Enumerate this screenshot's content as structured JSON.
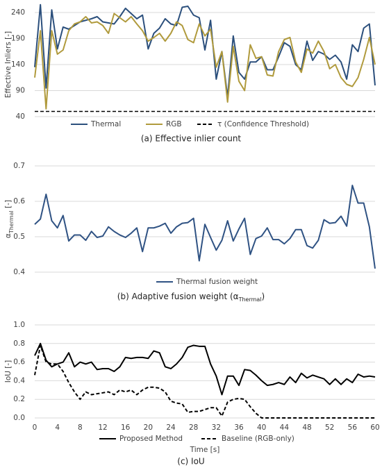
{
  "chart_data": [
    {
      "type": "line",
      "ylabel": "Effective Inliers [-]",
      "caption": "(a) Effective inlier count",
      "x": [
        0,
        1,
        2,
        3,
        4,
        5,
        6,
        7,
        8,
        9,
        10,
        11,
        12,
        13,
        14,
        15,
        16,
        17,
        18,
        19,
        20,
        21,
        22,
        23,
        24,
        25,
        26,
        27,
        28,
        29,
        30,
        31,
        32,
        33,
        34,
        35,
        36,
        37,
        38,
        39,
        40,
        41,
        42,
        43,
        44,
        45,
        46,
        47,
        48,
        49,
        50,
        51,
        52,
        53,
        54,
        55,
        56,
        57,
        58,
        59,
        60
      ],
      "xlim": [
        0,
        60
      ],
      "ylim": [
        40,
        240
      ],
      "yticks": [
        40,
        90,
        140,
        190,
        240
      ],
      "grid": true,
      "series": [
        {
          "name": "Thermal",
          "color": "#2b4f7c",
          "style": "solid",
          "values": [
            135,
            255,
            95,
            245,
            170,
            212,
            208,
            215,
            222,
            225,
            228,
            232,
            222,
            220,
            218,
            232,
            248,
            238,
            228,
            235,
            170,
            200,
            210,
            228,
            218,
            215,
            250,
            252,
            235,
            230,
            168,
            225,
            112,
            165,
            78,
            195,
            125,
            112,
            145,
            145,
            155,
            130,
            130,
            155,
            182,
            175,
            140,
            130,
            185,
            148,
            165,
            160,
            150,
            158,
            145,
            112,
            178,
            165,
            210,
            218,
            100
          ]
        },
        {
          "name": "RGB",
          "color": "#b09a3c",
          "style": "solid",
          "values": [
            115,
            205,
            55,
            205,
            160,
            168,
            205,
            218,
            222,
            232,
            220,
            222,
            215,
            200,
            238,
            230,
            222,
            232,
            218,
            205,
            185,
            192,
            200,
            185,
            200,
            222,
            215,
            188,
            182,
            218,
            195,
            208,
            135,
            165,
            68,
            175,
            108,
            90,
            178,
            152,
            155,
            120,
            118,
            165,
            188,
            192,
            145,
            125,
            170,
            162,
            185,
            165,
            132,
            140,
            115,
            102,
            98,
            115,
            150,
            192,
            140
          ]
        }
      ],
      "threshold": {
        "name": "τ (Confidence Threshold)",
        "value": 50,
        "color": "#000000",
        "style": "dashed"
      }
    },
    {
      "type": "line",
      "ylabel": [
        "α",
        "Thermal",
        " [-]"
      ],
      "caption": [
        "(b) Adaptive fusion weight (α",
        "Thermal",
        ")"
      ],
      "x": [
        0,
        1,
        2,
        3,
        4,
        5,
        6,
        7,
        8,
        9,
        10,
        11,
        12,
        13,
        14,
        15,
        16,
        17,
        18,
        19,
        20,
        21,
        22,
        23,
        24,
        25,
        26,
        27,
        28,
        29,
        30,
        31,
        32,
        33,
        34,
        35,
        36,
        37,
        38,
        39,
        40,
        41,
        42,
        43,
        44,
        45,
        46,
        47,
        48,
        49,
        50,
        51,
        52,
        53,
        54,
        55,
        56,
        57,
        58,
        59,
        60
      ],
      "xlim": [
        0,
        60
      ],
      "ylim": [
        0.4,
        0.7
      ],
      "yticks": [
        0.4,
        0.5,
        0.6,
        0.7
      ],
      "grid": true,
      "series": [
        {
          "name": "Thermal fusion weight",
          "color": "#2f5283",
          "style": "solid",
          "values": [
            0.535,
            0.55,
            0.62,
            0.545,
            0.525,
            0.56,
            0.488,
            0.505,
            0.505,
            0.49,
            0.515,
            0.498,
            0.502,
            0.528,
            0.515,
            0.505,
            0.498,
            0.51,
            0.525,
            0.458,
            0.525,
            0.525,
            0.53,
            0.538,
            0.51,
            0.528,
            0.538,
            0.54,
            0.552,
            0.432,
            0.535,
            0.498,
            0.462,
            0.49,
            0.545,
            0.488,
            0.522,
            0.552,
            0.45,
            0.495,
            0.502,
            0.525,
            0.492,
            0.492,
            0.48,
            0.495,
            0.52,
            0.52,
            0.475,
            0.468,
            0.49,
            0.548,
            0.538,
            0.54,
            0.558,
            0.53,
            0.645,
            0.595,
            0.595,
            0.528,
            0.41
          ]
        }
      ]
    },
    {
      "type": "line",
      "ylabel": "IoU [-]",
      "xlabel": "Time [s]",
      "caption": "(c) IoU",
      "x": [
        0,
        1,
        2,
        3,
        4,
        5,
        6,
        7,
        8,
        9,
        10,
        11,
        12,
        13,
        14,
        15,
        16,
        17,
        18,
        19,
        20,
        21,
        22,
        23,
        24,
        25,
        26,
        27,
        28,
        29,
        30,
        31,
        32,
        33,
        34,
        35,
        36,
        37,
        38,
        39,
        40,
        41,
        42,
        43,
        44,
        45,
        46,
        47,
        48,
        49,
        50,
        51,
        52,
        53,
        54,
        55,
        56,
        57,
        58,
        59,
        60
      ],
      "xlim": [
        0,
        60
      ],
      "xticks": [
        0,
        4,
        8,
        12,
        16,
        20,
        24,
        28,
        32,
        36,
        40,
        44,
        48,
        52,
        56,
        60
      ],
      "ylim": [
        0,
        1
      ],
      "yticks": [
        {
          "value": 0,
          "label": "0.0"
        },
        0.2,
        0.4,
        0.6,
        0.8,
        {
          "value": 1,
          "label": "1.0"
        }
      ],
      "grid": true,
      "series": [
        {
          "name": "Proposed Method",
          "color": "#000000",
          "style": "solid",
          "values": [
            0.67,
            0.8,
            0.62,
            0.55,
            0.58,
            0.6,
            0.7,
            0.55,
            0.6,
            0.58,
            0.6,
            0.52,
            0.53,
            0.53,
            0.5,
            0.55,
            0.65,
            0.64,
            0.65,
            0.65,
            0.64,
            0.72,
            0.7,
            0.55,
            0.53,
            0.58,
            0.65,
            0.76,
            0.78,
            0.77,
            0.77,
            0.58,
            0.45,
            0.25,
            0.45,
            0.45,
            0.35,
            0.52,
            0.51,
            0.46,
            0.4,
            0.35,
            0.36,
            0.38,
            0.36,
            0.44,
            0.38,
            0.48,
            0.43,
            0.46,
            0.44,
            0.42,
            0.36,
            0.42,
            0.36,
            0.42,
            0.38,
            0.47,
            0.44,
            0.45,
            0.44
          ]
        },
        {
          "name": "Baseline (RGB-only)",
          "color": "#000000",
          "style": "dashed",
          "values": [
            0.46,
            0.78,
            0.6,
            0.58,
            0.58,
            0.5,
            0.38,
            0.28,
            0.2,
            0.28,
            0.25,
            0.26,
            0.27,
            0.28,
            0.25,
            0.3,
            0.28,
            0.3,
            0.25,
            0.3,
            0.33,
            0.33,
            0.32,
            0.28,
            0.18,
            0.16,
            0.15,
            0.06,
            0.07,
            0.07,
            0.09,
            0.11,
            0.11,
            0.02,
            0.17,
            0.2,
            0.21,
            0.2,
            0.12,
            0.05,
            0,
            0,
            0,
            0,
            0,
            0,
            0,
            0,
            0,
            0,
            0,
            0,
            0,
            0,
            0,
            0,
            0,
            0,
            0,
            0,
            0
          ]
        }
      ]
    }
  ]
}
